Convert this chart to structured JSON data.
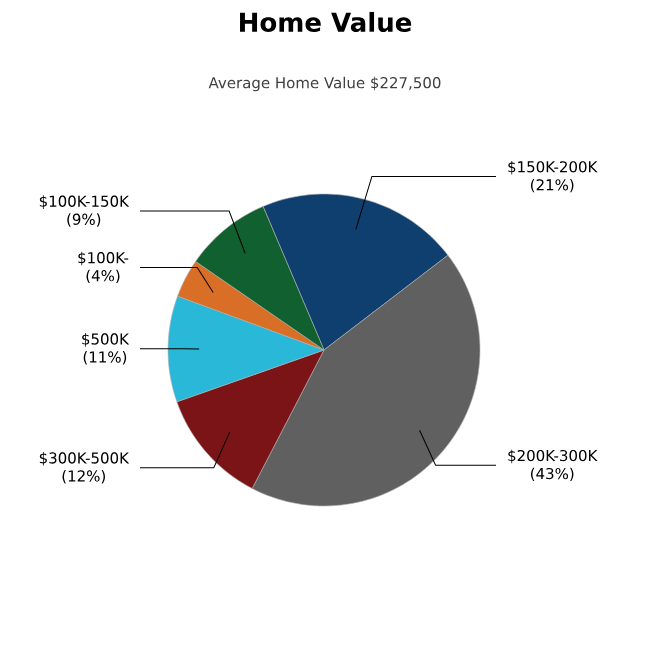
{
  "chart_data": {
    "type": "pie",
    "title": "Home Value",
    "subtitle": "Average Home Value  $227,500",
    "categories": [
      "$150K-200K",
      "$200K-300K",
      "$300K-500K",
      "$500K",
      "$100K-",
      "$100K-150K"
    ],
    "values": [
      21,
      43,
      12,
      11,
      4,
      9
    ],
    "colors": [
      "#0e3f6e",
      "#606060",
      "#7a1416",
      "#29b8d8",
      "#d96f27",
      "#11602f"
    ],
    "value_labels": [
      "(21%)",
      "(43%)",
      "(12%)",
      "(11%)",
      "(4%)",
      "(9%)"
    ]
  }
}
